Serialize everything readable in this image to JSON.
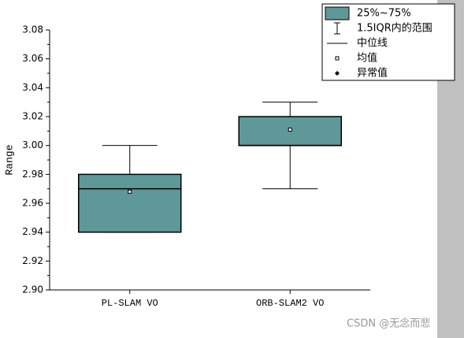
{
  "chart_data": {
    "type": "box",
    "y_label": "Range",
    "categories": [
      "PL-SLAM VO",
      "ORB-SLAM2 VO"
    ],
    "boxes": [
      {
        "min": 2.94,
        "q1": 2.94,
        "median": 2.97,
        "q3": 2.98,
        "max": 3.0,
        "mean": 2.968
      },
      {
        "min": 2.97,
        "q1": 3.0,
        "median": 3.0,
        "q3": 3.02,
        "max": 3.03,
        "mean": 3.011
      }
    ],
    "color": "#5f9898",
    "ylim": [
      2.9,
      3.08
    ],
    "yticks": [
      {
        "value": 2.9,
        "label": "2.90"
      },
      2.92,
      2.94,
      2.96,
      2.98,
      {
        "value": 3.0,
        "label": "3.00"
      },
      3.02,
      3.04,
      3.06,
      3.08
    ],
    "legend": [
      "25%~75%",
      "1.5IQR内的范围",
      "中位线",
      "均值",
      "异常值"
    ]
  },
  "watermark": "CSDN @无念而悲"
}
